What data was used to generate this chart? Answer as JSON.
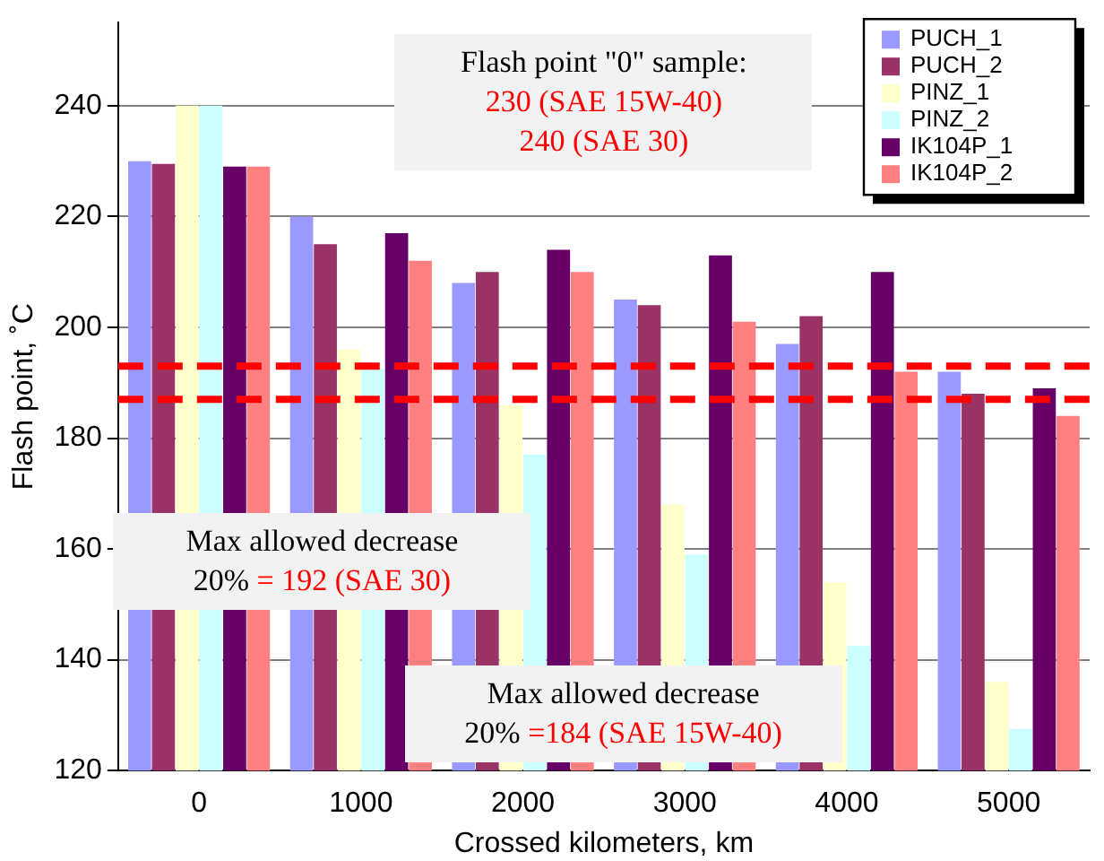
{
  "chart_data": {
    "type": "bar",
    "xlabel": "Crossed kilometers, km",
    "ylabel": "Flash point, ˚C",
    "categories": [
      "0",
      "1000",
      "2000",
      "3000",
      "4000",
      "5000"
    ],
    "series": [
      {
        "name": "PUCH_1",
        "color": "#9999ff",
        "values": [
          230,
          220,
          208,
          205,
          197,
          192
        ]
      },
      {
        "name": "PUCH_2",
        "color": "#993366",
        "values": [
          229.5,
          215,
          210,
          204,
          202,
          188
        ]
      },
      {
        "name": "PINZ_1",
        "color": "#ffffcc",
        "values": [
          240,
          196,
          186,
          168,
          154,
          136
        ]
      },
      {
        "name": "PINZ_2",
        "color": "#ccffff",
        "values": [
          240,
          192.5,
          177,
          159,
          142.5,
          127.5
        ]
      },
      {
        "name": "IK104P_1",
        "color": "#660066",
        "values": [
          229,
          217,
          214,
          213,
          210,
          189
        ]
      },
      {
        "name": "IK104P_2",
        "color": "#ff8080",
        "values": [
          229,
          212,
          210,
          201,
          192,
          184
        ]
      }
    ],
    "ylim": [
      120,
      255
    ],
    "yticks": [
      120,
      140,
      160,
      180,
      200,
      220,
      240
    ],
    "grid": "y",
    "legend": "top right",
    "ref_lines": [
      {
        "axis": "y",
        "value": 193,
        "color": "#ff0000",
        "line_style": "dashed"
      },
      {
        "axis": "y",
        "value": 187,
        "color": "#ff0000",
        "line_style": "dashed"
      }
    ],
    "annotations": [
      "Flash point \"0\" sample:\n230 (SAE 15W-40)\n240 (SAE 30)",
      "Max allowed decrease\n20% = 192 (SAE 30)",
      "Max allowed decrease\n20% =184 (SAE 15W-40)"
    ]
  }
}
